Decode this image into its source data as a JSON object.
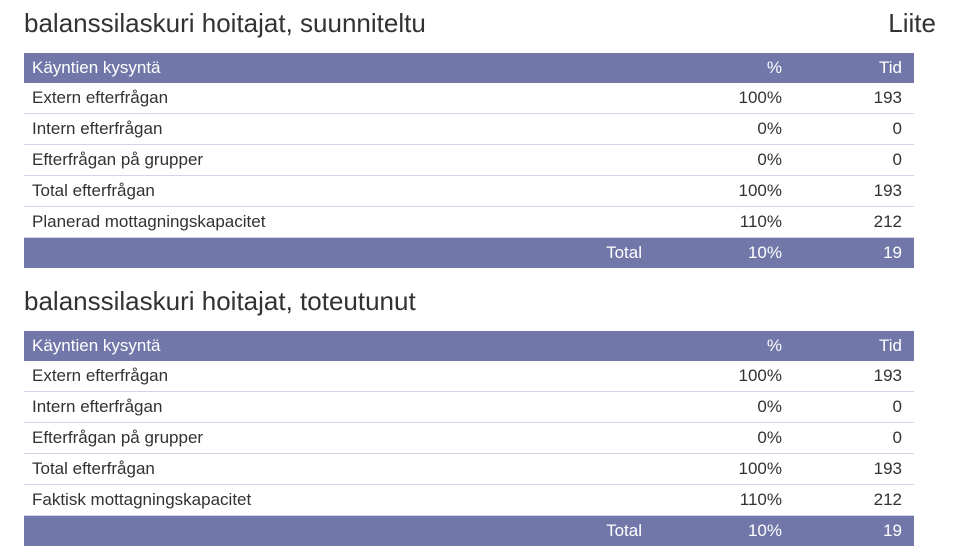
{
  "colors": {
    "header_bg": "#7177a9",
    "header_fg": "#ffffff",
    "row_border": "#d4d5e6",
    "text": "#323232",
    "background": "#ffffff"
  },
  "typography": {
    "title_fontsize_pt": 20,
    "cell_fontsize_pt": 13
  },
  "section1": {
    "title": "balanssilaskuri hoitajat, suunniteltu",
    "annotation": "Liite",
    "table": {
      "columns": [
        "Käyntien kysyntä",
        "%",
        "Tid"
      ],
      "rows": [
        [
          "Extern efterfrågan",
          "100%",
          "193"
        ],
        [
          "Intern efterfrågan",
          "0%",
          "0"
        ],
        [
          "Efterfrågan på grupper",
          "0%",
          "0"
        ],
        [
          "Total efterfrågan",
          "100%",
          "193"
        ],
        [
          "Planerad mottagningskapacitet",
          "110%",
          "212"
        ]
      ],
      "footer": [
        "Total",
        "10%",
        "19"
      ]
    }
  },
  "section2": {
    "title": "balanssilaskuri hoitajat, toteutunut",
    "table": {
      "columns": [
        "Käyntien kysyntä",
        "%",
        "Tid"
      ],
      "rows": [
        [
          "Extern efterfrågan",
          "100%",
          "193"
        ],
        [
          "Intern efterfrågan",
          "0%",
          "0"
        ],
        [
          "Efterfrågan på grupper",
          "0%",
          "0"
        ],
        [
          "Total efterfrågan",
          "100%",
          "193"
        ],
        [
          "Faktisk mottagningskapacitet",
          "110%",
          "212"
        ]
      ],
      "footer": [
        "Total",
        "10%",
        "19"
      ]
    }
  }
}
